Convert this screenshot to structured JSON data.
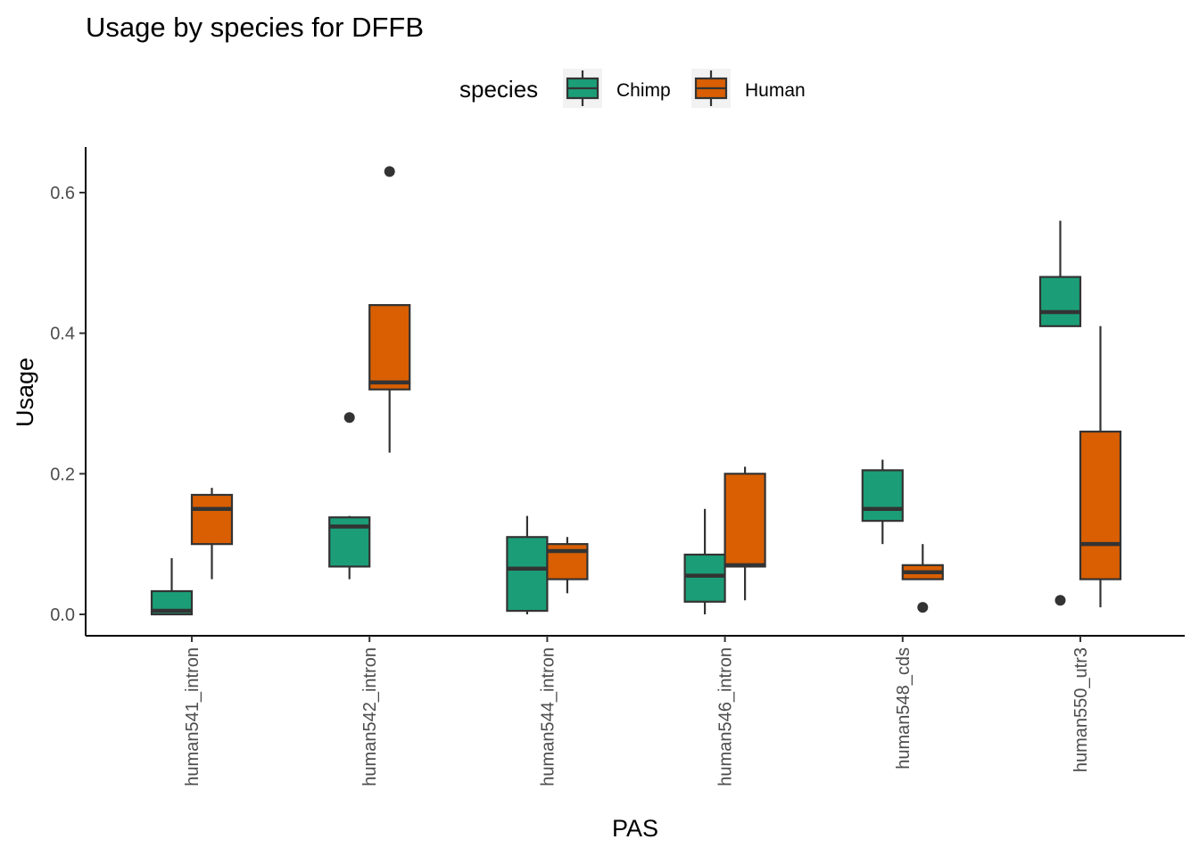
{
  "chart_data": {
    "type": "boxplot",
    "title": "Usage by species for DFFB",
    "xlabel": "PAS",
    "ylabel": "Usage",
    "ylim": [
      -0.032,
      0.66
    ],
    "yticks": [
      0.0,
      0.2,
      0.4,
      0.6
    ],
    "ytick_labels": [
      "0.0",
      "0.2",
      "0.4",
      "0.6"
    ],
    "grid": false,
    "legend": {
      "title": "species",
      "placement": "top"
    },
    "categories": [
      "human541_intron",
      "human542_intron",
      "human544_intron",
      "human546_intron",
      "human548_cds",
      "human550_utr3"
    ],
    "series": [
      {
        "name": "Chimp",
        "color": "#1B9E77",
        "boxes": [
          {
            "min": 0.0,
            "q1": 0.0,
            "median": 0.005,
            "q3": 0.033,
            "max": 0.08,
            "outliers": []
          },
          {
            "min": 0.05,
            "q1": 0.068,
            "median": 0.125,
            "q3": 0.138,
            "max": 0.14,
            "outliers": [
              0.28
            ]
          },
          {
            "min": 0.0,
            "q1": 0.005,
            "median": 0.065,
            "q3": 0.11,
            "max": 0.14,
            "outliers": []
          },
          {
            "min": 0.0,
            "q1": 0.018,
            "median": 0.055,
            "q3": 0.085,
            "max": 0.15,
            "outliers": []
          },
          {
            "min": 0.1,
            "q1": 0.133,
            "median": 0.15,
            "q3": 0.205,
            "max": 0.22,
            "outliers": []
          },
          {
            "min": 0.41,
            "q1": 0.41,
            "median": 0.43,
            "q3": 0.48,
            "max": 0.56,
            "outliers": [
              0.02
            ]
          }
        ]
      },
      {
        "name": "Human",
        "color": "#D95F02",
        "boxes": [
          {
            "min": 0.05,
            "q1": 0.1,
            "median": 0.15,
            "q3": 0.17,
            "max": 0.18,
            "outliers": []
          },
          {
            "min": 0.23,
            "q1": 0.32,
            "median": 0.33,
            "q3": 0.44,
            "max": 0.44,
            "outliers": [
              0.63
            ]
          },
          {
            "min": 0.03,
            "q1": 0.05,
            "median": 0.09,
            "q3": 0.1,
            "max": 0.11,
            "outliers": []
          },
          {
            "min": 0.02,
            "q1": 0.068,
            "median": 0.07,
            "q3": 0.2,
            "max": 0.21,
            "outliers": []
          },
          {
            "min": 0.05,
            "q1": 0.05,
            "median": 0.06,
            "q3": 0.07,
            "max": 0.1,
            "outliers": [
              0.01
            ]
          },
          {
            "min": 0.01,
            "q1": 0.05,
            "median": 0.1,
            "q3": 0.26,
            "max": 0.41,
            "outliers": []
          }
        ]
      }
    ]
  }
}
